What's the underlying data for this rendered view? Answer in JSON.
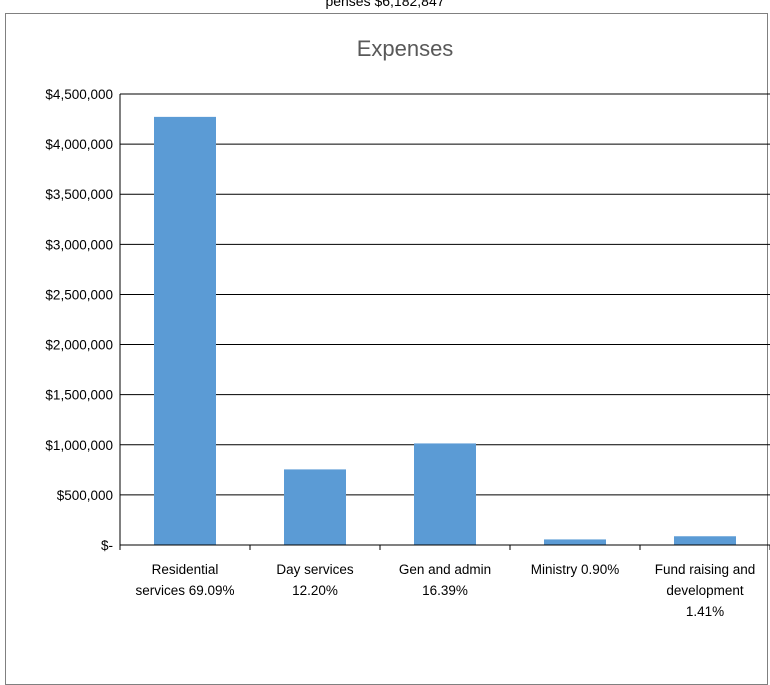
{
  "header": {
    "cut_text": "penses $6,182,847"
  },
  "chart_data": {
    "type": "bar",
    "title": "Expenses",
    "xlabel": "",
    "ylabel": "",
    "categories": [
      [
        "Residential",
        "services 69.09%"
      ],
      [
        "Day services",
        "12.20%"
      ],
      [
        "Gen and admin",
        "16.39%"
      ],
      [
        "Ministry 0.90%"
      ],
      [
        "Fund raising and",
        "development",
        "1.41%"
      ]
    ],
    "values": [
      4271730,
      754307,
      1013368,
      55646,
      87178
    ],
    "ylim": [
      0,
      4500000
    ],
    "yticks": [
      0,
      500000,
      1000000,
      1500000,
      2000000,
      2500000,
      3000000,
      3500000,
      4000000,
      4500000
    ],
    "ytick_labels": [
      "$-",
      "$500,000",
      "$1,000,000",
      "$1,500,000",
      "$2,000,000",
      "$2,500,000",
      "$3,000,000",
      "$3,500,000",
      "$4,000,000",
      "$4,500,000"
    ],
    "grid": true,
    "legend": "none",
    "colors": {
      "bar": "#5b9bd5",
      "grid": "#000000",
      "title": "#595959"
    }
  }
}
